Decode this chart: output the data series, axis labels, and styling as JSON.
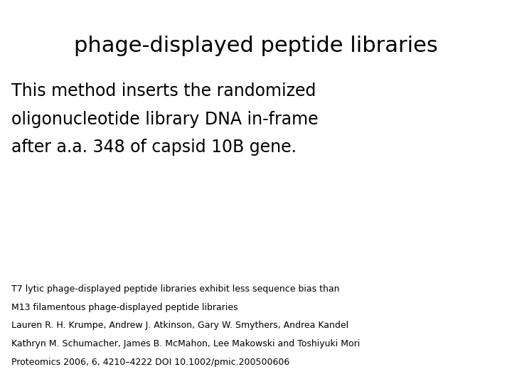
{
  "title": "phage-displayed peptide libraries",
  "title_fontsize": 22,
  "title_font": "DejaVu Sans",
  "body_text_lines": [
    "This method inserts the randomized",
    "oligonucleotide library DNA in-frame",
    "after a.a. 348 of capsid 10B gene."
  ],
  "body_fontsize": 17,
  "body_font": "DejaVu Sans",
  "footer_lines": [
    "T7 lytic phage-displayed peptide libraries exhibit less sequence bias than",
    "M13 filamentous phage-displayed peptide libraries",
    "Lauren R. H. Krumpe, Andrew J. Atkinson, Gary W. Smythers, Andrea Kandel",
    "Kathryn M. Schumacher, James B. McMahon, Lee Makowski and Toshiyuki Mori",
    "Proteomics 2006, 6, 4210–4222 DOI 10.1002/pmic.200500606"
  ],
  "footer_fontsize": 9,
  "footer_font": "DejaVu Sans",
  "background_color": "#ffffff",
  "text_color": "#000000",
  "fig_width": 7.2,
  "fig_height": 5.4,
  "dpi": 100
}
